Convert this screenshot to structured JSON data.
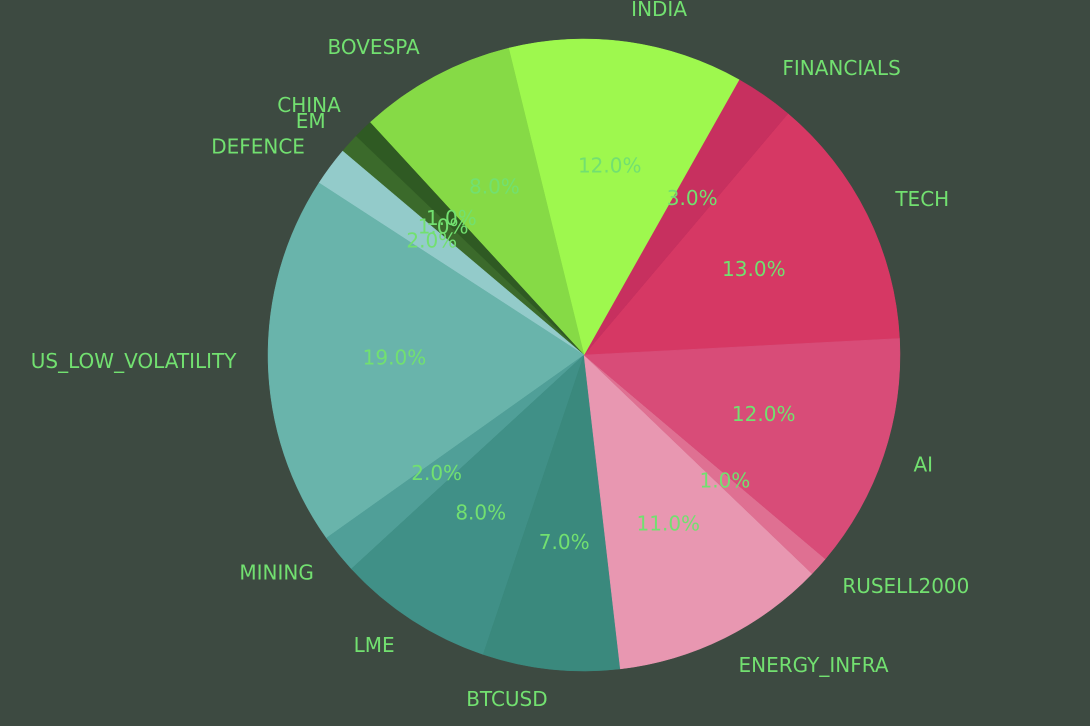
{
  "chart_data": {
    "type": "pie",
    "categories": [
      "TECH",
      "FINANCIALS",
      "INDIA",
      "BOVESPA",
      "CHINA",
      "EM",
      "DEFENCE",
      "US_LOW_VOLATILITY",
      "MINING",
      "LME",
      "BTCUSD",
      "ENERGY_INFRA",
      "RUSELL2000",
      "AI"
    ],
    "values": [
      13,
      3,
      12,
      8,
      1,
      1,
      2,
      19,
      2,
      8,
      7,
      11,
      1,
      12
    ],
    "value_labels": [
      "13.0%",
      "3.0%",
      "12.0%",
      "8.0%",
      "1.0%",
      "1.0%",
      "2.0%",
      "19.0%",
      "2.0%",
      "8.0%",
      "7.0%",
      "11.0%",
      "1.0%",
      "12.0%"
    ],
    "colors": [
      "#d63864",
      "#c7305f",
      "#9ef84e",
      "#86da46",
      "#2f5a23",
      "#3b6a2b",
      "#93cbca",
      "#69b4ab",
      "#509f98",
      "#409087",
      "#3a897d",
      "#e897b1",
      "#df7092",
      "#d84c78"
    ]
  }
}
